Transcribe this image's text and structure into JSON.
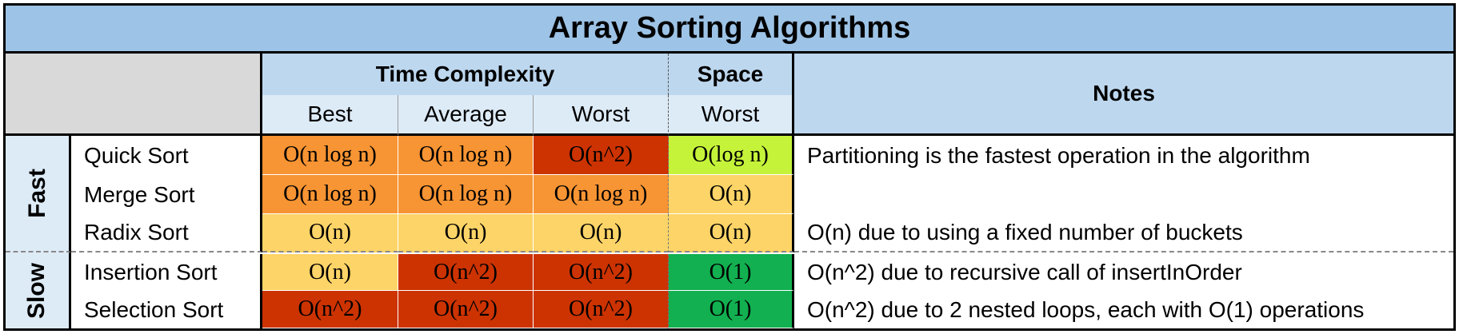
{
  "title": "Array Sorting Algorithms",
  "headers": {
    "time_complexity": "Time Complexity",
    "space": "Space",
    "notes": "Notes",
    "best": "Best",
    "average": "Average",
    "worst": "Worst",
    "space_worst": "Worst"
  },
  "groups": {
    "fast": "Fast",
    "slow": "Slow"
  },
  "rows": [
    {
      "name": "Quick Sort",
      "best": "O(n log n)",
      "average": "O(n log n)",
      "worst": "O(n^2)",
      "space": "O(log n)",
      "note": "Partitioning is the fastest operation in the algorithm",
      "colors": {
        "best": "#f79433",
        "average": "#f79433",
        "worst": "#cc3300",
        "space": "#c5f33a"
      }
    },
    {
      "name": "Merge Sort",
      "best": "O(n log n)",
      "average": "O(n log n)",
      "worst": "O(n log n)",
      "space": "O(n)",
      "note": "",
      "colors": {
        "best": "#f79433",
        "average": "#f79433",
        "worst": "#f79433",
        "space": "#fdd467"
      }
    },
    {
      "name": "Radix Sort",
      "best": "O(n)",
      "average": "O(n)",
      "worst": "O(n)",
      "space": "O(n)",
      "note": "O(n) due to using a fixed number of buckets",
      "colors": {
        "best": "#fdd467",
        "average": "#fdd467",
        "worst": "#fdd467",
        "space": "#fdd467"
      }
    },
    {
      "name": "Insertion Sort",
      "best": "O(n)",
      "average": "O(n^2)",
      "worst": "O(n^2)",
      "space": "O(1)",
      "note": "O(n^2) due to recursive call of insertInOrder",
      "colors": {
        "best": "#fdd467",
        "average": "#cc3300",
        "worst": "#cc3300",
        "space": "#12b050"
      }
    },
    {
      "name": "Selection Sort",
      "best": "O(n^2)",
      "average": "O(n^2)",
      "worst": "O(n^2)",
      "space": "O(1)",
      "note": "O(n^2) due to 2 nested loops, each with O(1) operations",
      "colors": {
        "best": "#cc3300",
        "average": "#cc3300",
        "worst": "#cc3300",
        "space": "#12b050"
      }
    }
  ]
}
